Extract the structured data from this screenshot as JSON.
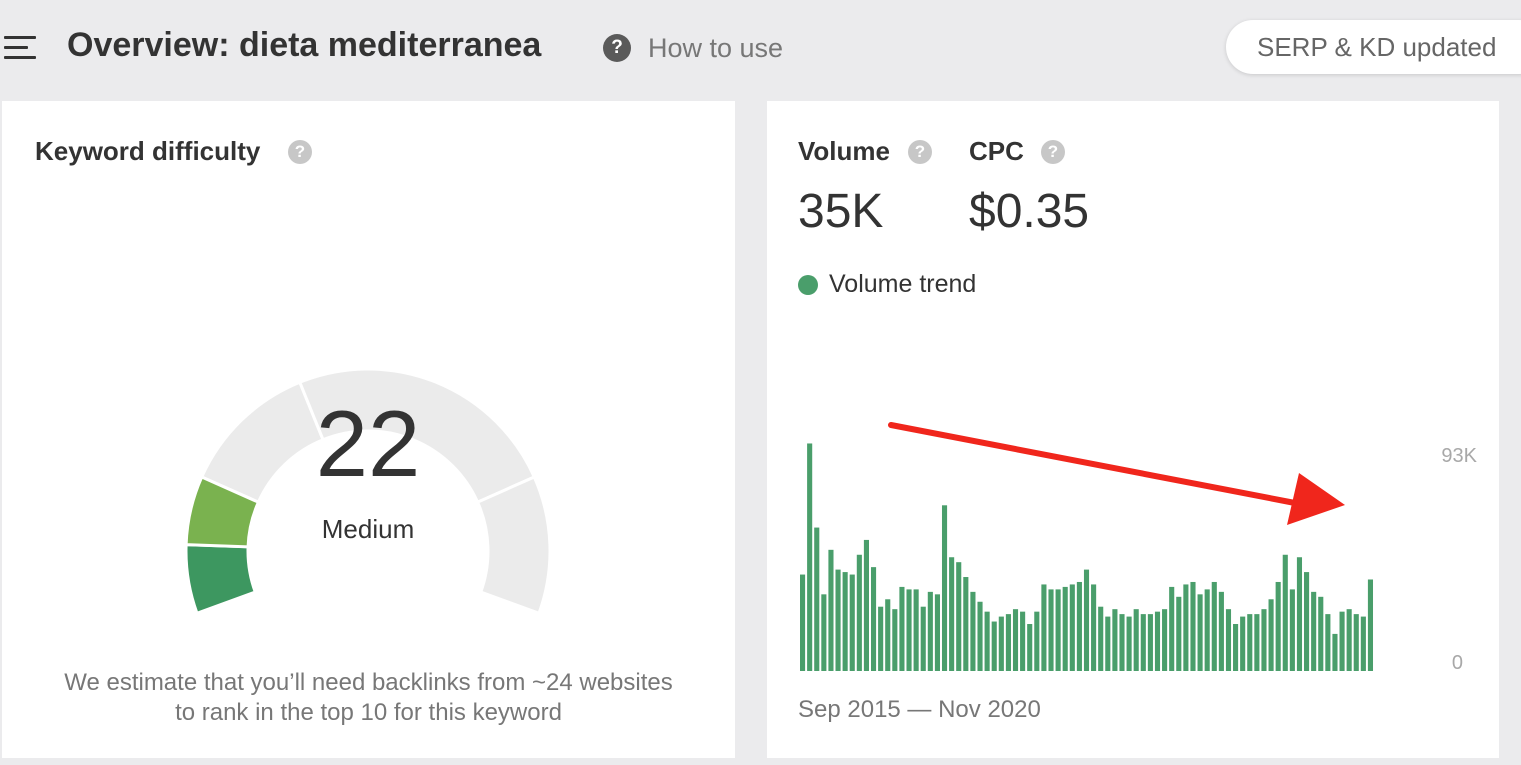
{
  "header": {
    "menu_icon": "hamburger-menu-icon",
    "title": "Overview: dieta mediterranea",
    "help_icon": "question-circle-icon",
    "how_to_use": "How to use",
    "serp_status": "SERP & KD updated"
  },
  "keyword_difficulty": {
    "label": "Keyword difficulty",
    "help_icon": "question-circle-icon",
    "score": "22",
    "score_value": 22,
    "level": "Medium",
    "note_line1": "We estimate that you’ll need backlinks from ~24 websites",
    "note_line2": "to rank in the top 10 for this keyword",
    "colors": {
      "filled_light": "#7ab24f",
      "filled_dark": "#3d9760",
      "empty": "#ebebeb"
    }
  },
  "metrics": {
    "volume_label": "Volume",
    "volume_value": "35K",
    "cpc_label": "CPC",
    "cpc_value": "$0.35",
    "help_icon": "question-circle-icon"
  },
  "volume_trend": {
    "legend_label": "Volume trend",
    "date_range": "Sep 2015 — Nov 2020",
    "arrow_icon": "red-down-trend-arrow",
    "colors": {
      "bar": "#4a9e6b",
      "arrow": "#f0261c"
    },
    "chart_data": {
      "type": "bar",
      "title": "",
      "xlabel": "",
      "ylabel": "",
      "ylim": [
        0,
        93000
      ],
      "y_ticks": [
        "93K",
        "0"
      ],
      "x_range": [
        "Sep 2015",
        "Nov 2020"
      ],
      "values": [
        39000,
        92000,
        58000,
        31000,
        49000,
        41000,
        40000,
        39000,
        47000,
        53000,
        42000,
        26000,
        29000,
        25000,
        34000,
        33000,
        33000,
        26000,
        32000,
        31000,
        67000,
        46000,
        44000,
        38000,
        32000,
        28000,
        24000,
        20000,
        22000,
        23000,
        25000,
        24000,
        19000,
        24000,
        35000,
        33000,
        33000,
        34000,
        35000,
        36000,
        41000,
        35000,
        26000,
        22000,
        25000,
        23000,
        22000,
        25000,
        23000,
        23000,
        24000,
        25000,
        34000,
        30000,
        35000,
        36000,
        31000,
        33000,
        36000,
        32000,
        25000,
        19000,
        22000,
        23000,
        23000,
        25000,
        29000,
        36000,
        47000,
        33000,
        46000,
        40000,
        32000,
        30000,
        23000,
        15000,
        24000,
        25000,
        23000,
        22000,
        37000
      ]
    }
  }
}
